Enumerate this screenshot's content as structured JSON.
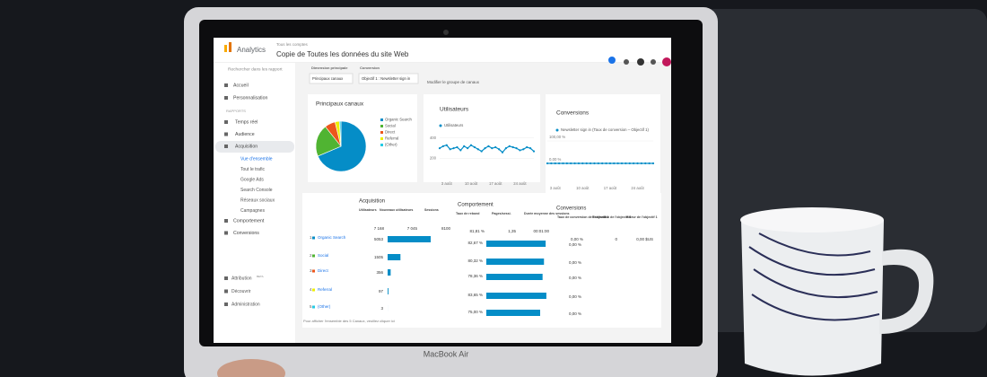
{
  "header": {
    "brand": "Analytics",
    "breadcrumb": "Tous les comptes",
    "view": "Copie de Toutes les données du site Web"
  },
  "sidebar": {
    "search": "Rechercher dans les rapport",
    "top": [
      "Accueil",
      "Personnalisation"
    ],
    "section": "RAPPORTS",
    "reports": [
      "Temps réel",
      "Audience",
      "Acquisition"
    ],
    "sub": [
      "Vue d'ensemble",
      "Tout le trafic",
      "Google Ads",
      "Search Console",
      "Réseaux sociaux",
      "Campagnes"
    ],
    "more": [
      "Comportement",
      "Conversions"
    ],
    "bottom": [
      "Attribution",
      "Découvrir",
      "Administration"
    ],
    "beta": "BETA"
  },
  "controls": {
    "dimension_label": "Dimension principale",
    "dimension": "Principaux canaux",
    "conversion_label": "Conversion",
    "conversion": "Objectif 1 : Newsletter sign in",
    "edit": "Modifier le groupe de canaux"
  },
  "chart_data": [
    {
      "type": "pie",
      "title": "Principaux canaux",
      "categories": [
        "Organic Search",
        "Social",
        "Direct",
        "Referral",
        "(Other)"
      ],
      "values": [
        68.6,
        20.7,
        6.9,
        2.8,
        1.0
      ],
      "colors": [
        "#058dc7",
        "#50b432",
        "#ed561b",
        "#edef00",
        "#24cbe5"
      ]
    },
    {
      "type": "line",
      "title": "Utilisateurs",
      "x": [
        null,
        null,
        "3 août",
        null,
        null,
        null,
        null,
        null,
        null,
        "10 août",
        null,
        null,
        null,
        null,
        null,
        null,
        "17 août",
        null,
        null,
        null,
        null,
        null,
        null,
        "24 août",
        null,
        null,
        null,
        null
      ],
      "series": [
        {
          "name": "Utilisateurs",
          "color": "#058dc7",
          "values": [
            300,
            320,
            330,
            290,
            300,
            310,
            280,
            320,
            300,
            330,
            310,
            290,
            270,
            300,
            320,
            300,
            310,
            290,
            260,
            300,
            320,
            310,
            300,
            280,
            290,
            310,
            300,
            270
          ]
        }
      ],
      "ylim": [
        100,
        450
      ],
      "yticks": [
        200,
        400
      ],
      "grid": true
    },
    {
      "type": "line",
      "title": "Conversions",
      "x": [
        null,
        null,
        "3 août",
        null,
        null,
        null,
        null,
        null,
        null,
        "10 août",
        null,
        null,
        null,
        null,
        null,
        null,
        "17 août",
        null,
        null,
        null,
        null,
        null,
        null,
        "24 août",
        null,
        null,
        null,
        null
      ],
      "series": [
        {
          "name": "Newsletter sign in (Taux de conversion – Objectif 1)",
          "color": "#058dc7",
          "values": [
            0,
            0,
            0,
            0,
            0,
            0,
            0,
            0,
            0,
            0,
            0,
            0,
            0,
            0,
            0,
            0,
            0,
            0,
            0,
            0,
            0,
            0,
            0,
            0,
            0,
            0,
            0,
            0
          ]
        }
      ],
      "ylim": [
        0,
        100
      ],
      "yticks": [
        {
          "value": 100,
          "label": "100,00 %"
        },
        {
          "value": 0,
          "label": "0,00 %"
        }
      ],
      "grid": true
    }
  ],
  "table": {
    "groups": [
      "Acquisition",
      "Comportement",
      "Conversions"
    ],
    "headers": [
      "Utilisateurs",
      "Nouveaux utilisateurs",
      "Sessions",
      "Taux de rebond",
      "Pages/sessi.",
      "Durée moyenne des sessions",
      "Taux de conversion de l'objectif 1",
      "Réalisation de l'objectif 1",
      "Valeur de l'objectif 1"
    ],
    "totals": [
      "7 168",
      "7 045",
      "8100",
      "81,81 %",
      "1,35",
      "00:01:00",
      "0,00 %",
      "0",
      "0,00 $US"
    ],
    "rows": [
      {
        "rank": "1",
        "channel": "Organic Search",
        "users": 5053,
        "bounce": 82.67,
        "bounce_label": "82,67 %",
        "conv": "0,00 %"
      },
      {
        "rank": "2",
        "channel": "Social",
        "users": 1505,
        "bounce": 80.32,
        "bounce_label": "80,32 %",
        "conv": "0,00 %"
      },
      {
        "rank": "3",
        "channel": "Direct",
        "users": 356,
        "bounce": 78.36,
        "bounce_label": "78,36 %",
        "conv": "0,00 %"
      },
      {
        "rank": "4",
        "channel": "Referral",
        "users": 97,
        "bounce": 83.65,
        "bounce_label": "83,65 %",
        "conv": "0,00 %"
      },
      {
        "rank": "5",
        "channel": "(Other)",
        "users": 3,
        "bounce": 75.0,
        "bounce_label": "75,00 %",
        "conv": "0,00 %"
      }
    ],
    "footer": "Pour afficher l'ensemble des 5 Canaux, veuillez cliquer ici"
  },
  "laptop": {
    "model": "MacBook Air"
  }
}
